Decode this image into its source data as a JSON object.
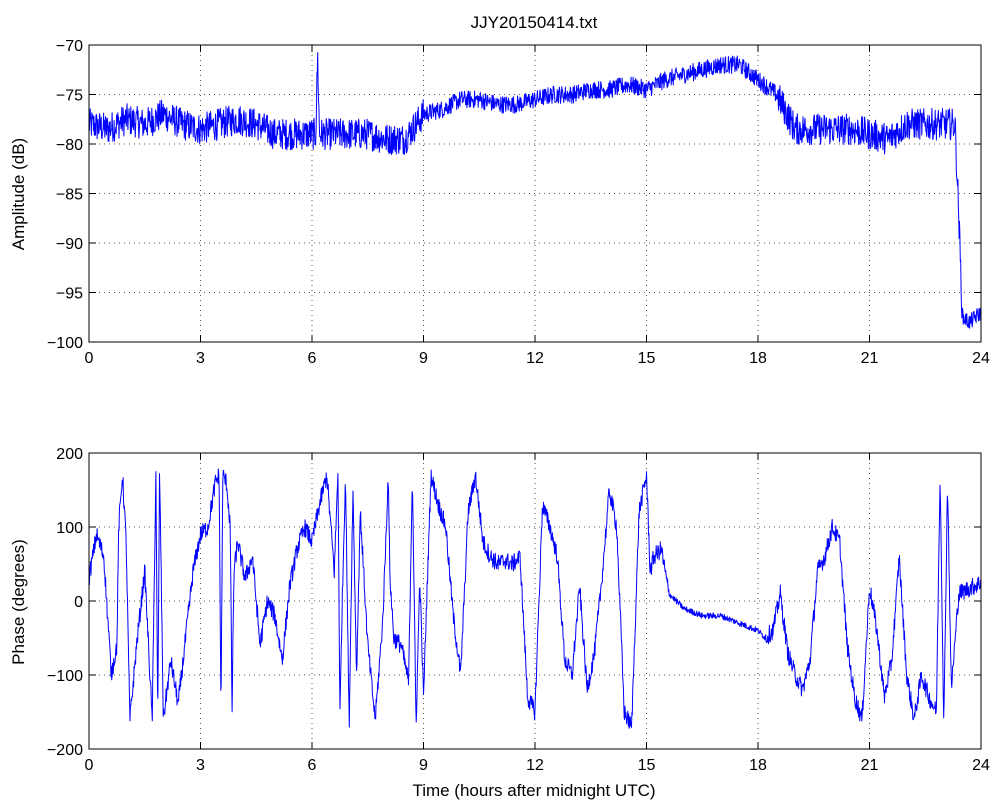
{
  "chart_data": [
    {
      "type": "line",
      "title": "JJY20150414.txt",
      "xlabel": "",
      "ylabel": "Amplitude (dB)",
      "xlim": [
        0,
        24
      ],
      "ylim": [
        -100,
        -70
      ],
      "xticks": [
        "0",
        "3",
        "6",
        "9",
        "12",
        "15",
        "18",
        "21",
        "24"
      ],
      "yticks": [
        "-70",
        "-75",
        "-80",
        "-85",
        "-90",
        "-95",
        "-100"
      ],
      "grid": true,
      "series": [
        {
          "color": "#0000ff",
          "x": [
            0,
            0.5,
            1,
            1.5,
            2,
            2.5,
            3,
            3.5,
            4,
            4.5,
            5,
            5.5,
            6,
            6.1,
            6.15,
            6.2,
            6.5,
            7,
            7.5,
            8,
            8.5,
            9,
            9.5,
            10,
            10.5,
            11,
            11.5,
            12,
            12.5,
            13,
            13.5,
            14,
            14.5,
            15,
            15.5,
            16,
            16.5,
            17,
            17.5,
            18,
            18.5,
            19,
            19.5,
            20,
            20.5,
            21,
            21.5,
            22,
            22.5,
            23,
            23.3,
            23.4,
            23.5,
            23.7,
            24
          ],
          "y": [
            -78,
            -78.5,
            -77.5,
            -78,
            -77,
            -78,
            -78.5,
            -78,
            -77.5,
            -78,
            -79,
            -79,
            -79,
            -79,
            -71,
            -79,
            -79,
            -79,
            -79,
            -79.5,
            -79.5,
            -77,
            -76.5,
            -75.5,
            -75.5,
            -76,
            -76,
            -75.5,
            -75,
            -75,
            -74.5,
            -74.5,
            -74,
            -74.5,
            -73.5,
            -73,
            -72.5,
            -72,
            -72,
            -73.5,
            -75,
            -78.5,
            -78.5,
            -78.5,
            -78.5,
            -79,
            -79.5,
            -78,
            -78,
            -78,
            -78,
            -87,
            -97.5,
            -98,
            -97
          ]
        }
      ]
    },
    {
      "type": "line",
      "title": "",
      "xlabel": "Time (hours after midnight UTC)",
      "ylabel": "Phase (degrees)",
      "xlim": [
        0,
        24
      ],
      "ylim": [
        -200,
        200
      ],
      "xticks": [
        "0",
        "3",
        "6",
        "9",
        "12",
        "15",
        "18",
        "21",
        "24"
      ],
      "yticks": [
        "200",
        "100",
        "0",
        "-100",
        "-200"
      ],
      "grid": true,
      "series": [
        {
          "color": "#0000ff",
          "x": [
            0,
            0.2,
            0.4,
            0.6,
            0.75,
            0.8,
            0.9,
            1.0,
            1.1,
            1.3,
            1.5,
            1.7,
            1.8,
            1.85,
            1.9,
            2.0,
            2.1,
            2.2,
            2.4,
            2.6,
            2.8,
            3.0,
            3.2,
            3.4,
            3.5,
            3.55,
            3.6,
            3.7,
            3.8,
            3.85,
            3.9,
            4.0,
            4.2,
            4.4,
            4.6,
            4.8,
            5.0,
            5.2,
            5.4,
            5.6,
            5.8,
            6.0,
            6.2,
            6.4,
            6.6,
            6.7,
            6.75,
            6.8,
            6.9,
            7.0,
            7.1,
            7.2,
            7.3,
            7.5,
            7.7,
            7.9,
            8.0,
            8.05,
            8.1,
            8.2,
            8.4,
            8.6,
            8.7,
            8.8,
            8.9,
            9.0,
            9.2,
            9.4,
            9.6,
            9.8,
            10.0,
            10.2,
            10.4,
            10.6,
            10.8,
            11.0,
            11.2,
            11.4,
            11.6,
            11.8,
            12.0,
            12.2,
            12.4,
            12.6,
            12.8,
            13.0,
            13.2,
            13.4,
            13.6,
            13.8,
            14.0,
            14.2,
            14.4,
            14.6,
            14.8,
            15.0,
            15.1,
            15.2,
            15.4,
            15.6,
            15.8,
            16.0,
            16.5,
            17.0,
            17.5,
            18.0,
            18.2,
            18.4,
            18.6,
            18.8,
            19.0,
            19.2,
            19.4,
            19.6,
            19.8,
            20.0,
            20.2,
            20.4,
            20.6,
            20.8,
            21.0,
            21.2,
            21.4,
            21.6,
            21.8,
            22.0,
            22.2,
            22.4,
            22.6,
            22.8,
            22.9,
            23.0,
            23.1,
            23.2,
            23.4,
            23.6,
            23.8,
            24.0
          ],
          "y": [
            30,
            90,
            60,
            -100,
            -60,
            100,
            170,
            80,
            -160,
            -50,
            40,
            -160,
            175,
            -170,
            175,
            -160,
            -120,
            -80,
            -140,
            -50,
            40,
            90,
            100,
            160,
            170,
            -150,
            170,
            160,
            100,
            -150,
            40,
            80,
            30,
            60,
            -60,
            0,
            -20,
            -80,
            20,
            70,
            100,
            80,
            130,
            170,
            40,
            175,
            -160,
            -30,
            170,
            -170,
            150,
            -100,
            120,
            -60,
            -160,
            -30,
            100,
            170,
            30,
            -50,
            -60,
            -110,
            170,
            -170,
            30,
            -130,
            170,
            130,
            100,
            -20,
            -100,
            120,
            170,
            80,
            60,
            50,
            55,
            50,
            60,
            -130,
            -150,
            130,
            100,
            60,
            -80,
            -100,
            20,
            -120,
            -70,
            30,
            150,
            100,
            -150,
            -170,
            120,
            170,
            40,
            60,
            70,
            10,
            0,
            -10,
            -20,
            -20,
            -30,
            -40,
            -50,
            -40,
            10,
            -70,
            -100,
            -120,
            -80,
            40,
            60,
            100,
            80,
            -60,
            -130,
            -160,
            20,
            -40,
            -130,
            -80,
            60,
            -100,
            -160,
            -100,
            -130,
            -150,
            170,
            -170,
            160,
            -120,
            10,
            15,
            20,
            25
          ]
        }
      ]
    }
  ]
}
